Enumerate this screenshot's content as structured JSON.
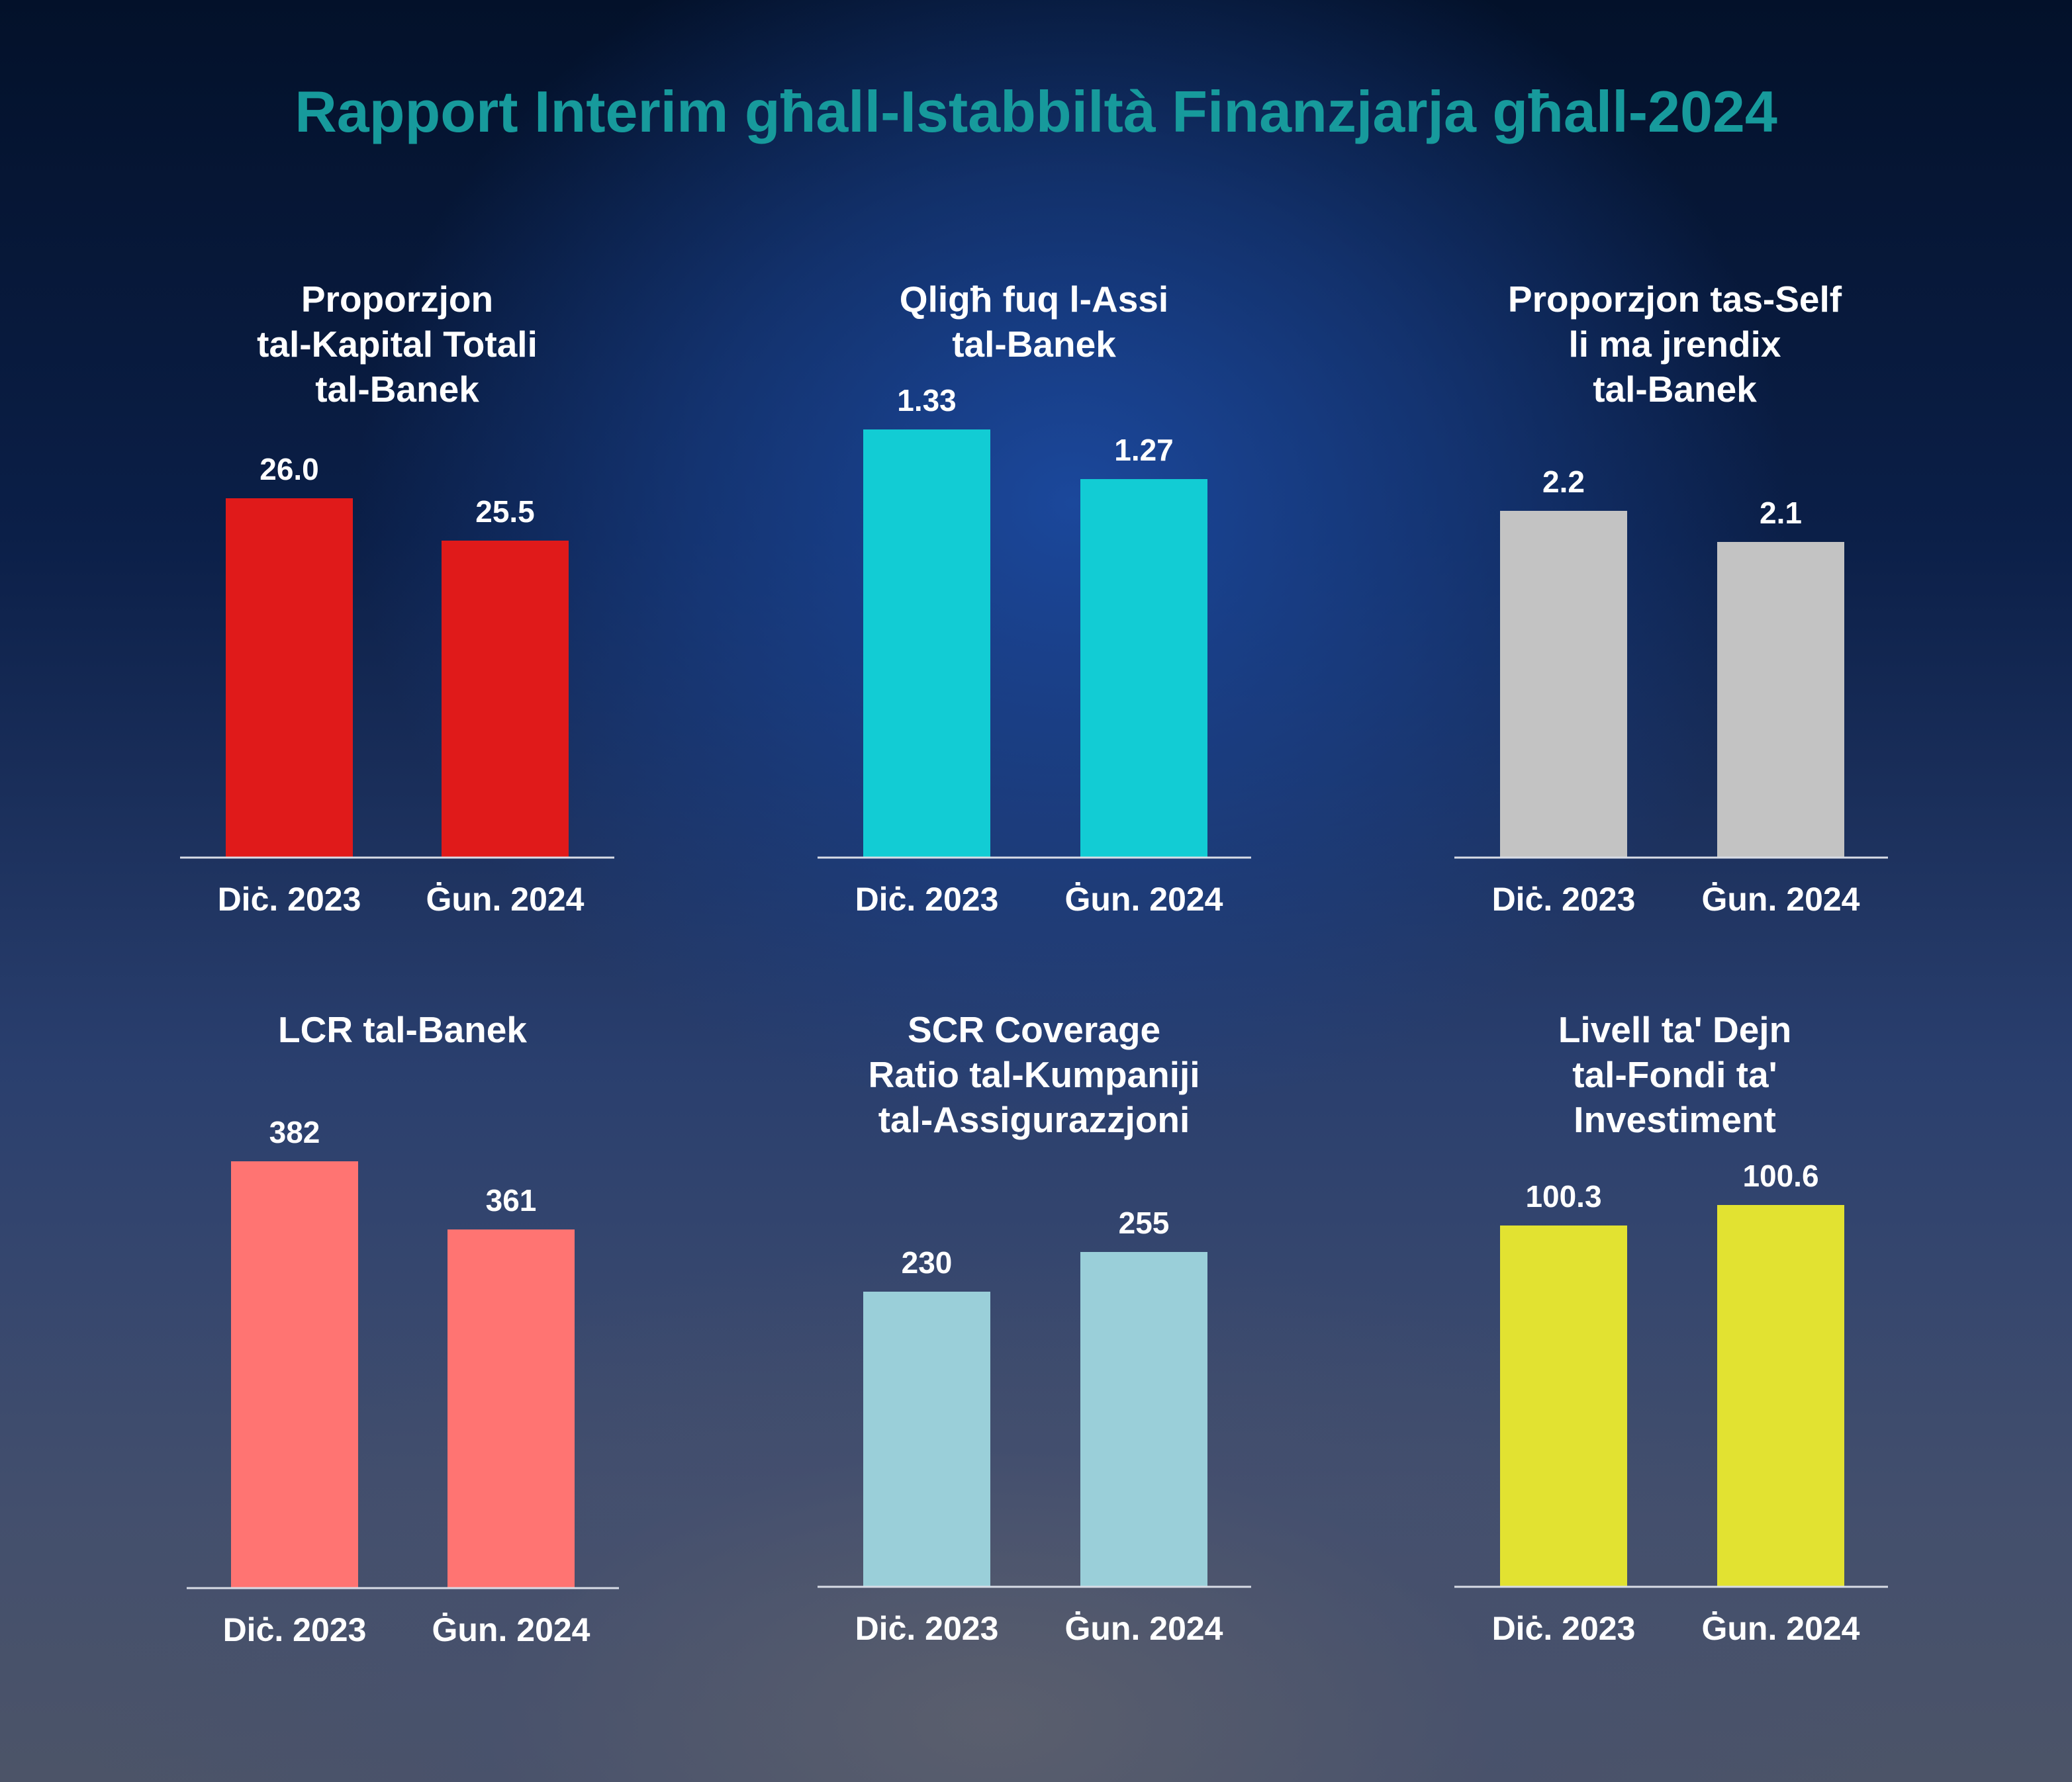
{
  "title": "Rapport Interim għall-Istabbiltà Finanzjarja għall-2024",
  "chart_data": [
    {
      "type": "bar",
      "title_lines": [
        "Proporzjon",
        "tal-Kapital Totali",
        "tal-Banek"
      ],
      "categories": [
        "Diċ. 2023",
        "Ġun. 2024"
      ],
      "values": [
        26.0,
        25.5
      ],
      "value_labels": [
        "26.0",
        "25.5"
      ],
      "color": "#e01a1a"
    },
    {
      "type": "bar",
      "title_lines": [
        "Qligħ fuq l-Assi",
        "tal-Banek"
      ],
      "categories": [
        "Diċ. 2023",
        "Ġun. 2024"
      ],
      "values": [
        1.33,
        1.27
      ],
      "value_labels": [
        "1.33",
        "1.27"
      ],
      "color": "#12ccd4"
    },
    {
      "type": "bar",
      "title_lines": [
        "Proporzjon tas-Self",
        "li ma jrendix",
        "tal-Banek"
      ],
      "categories": [
        "Diċ. 2023",
        "Ġun. 2024"
      ],
      "values": [
        2.2,
        2.1
      ],
      "value_labels": [
        "2.2",
        "2.1"
      ],
      "color": "#c3c3c3"
    },
    {
      "type": "bar",
      "title_lines": [
        "LCR tal-Banek"
      ],
      "categories": [
        "Diċ. 2023",
        "Ġun. 2024"
      ],
      "values": [
        382,
        361
      ],
      "value_labels": [
        "382",
        "361"
      ],
      "color": "#ff7472"
    },
    {
      "type": "bar",
      "title_lines": [
        "SCR Coverage",
        "Ratio tal-Kumpaniji",
        "tal-Assigurazzjoni"
      ],
      "categories": [
        "Diċ. 2023",
        "Ġun. 2024"
      ],
      "values": [
        230,
        255
      ],
      "value_labels": [
        "230",
        "255"
      ],
      "color": "#9acfd9"
    },
    {
      "type": "bar",
      "title_lines": [
        "Livell ta' Dejn",
        "tal-Fondi ta'",
        "Investiment"
      ],
      "categories": [
        "Diċ. 2023",
        "Ġun. 2024"
      ],
      "values": [
        100.3,
        100.6
      ],
      "value_labels": [
        "100.3",
        "100.6"
      ],
      "color": "#e2e231"
    }
  ]
}
